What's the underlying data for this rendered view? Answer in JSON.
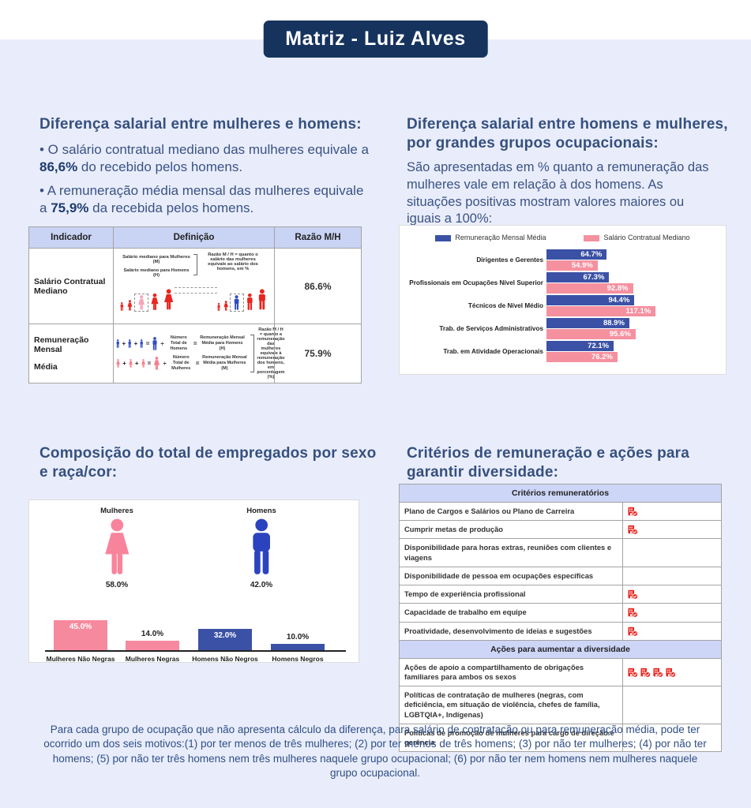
{
  "page": {
    "title": "Matriz - Luiz Alves",
    "footnote": "Para cada grupo de ocupação que não apresenta cálculo da diferença, para salário de contratação ou para remuneração média, pode ter ocorrido um dos seis motivos:(1) por ter menos de três mulheres; (2) por ter menos de três homens; (3) por não ter mulheres; (4) por não ter homens; (5) por não ter três homens nem três mulheres naquele grupo ocupacional; (6) por não ter nem homens nem mulheres naquele grupo ocupacional."
  },
  "salary_gap_section": {
    "heading": "Diferença salarial entre mulheres e homens:",
    "bullet1": {
      "pre": "• O salário contratual mediano das mulheres equivale a ",
      "bold": "86,6%",
      "post": " do recebido pelos homens."
    },
    "bullet2": {
      "pre": "• A remuneração média mensal das mulheres equivale a ",
      "bold": "75,9%",
      "post": " da recebida pelos homens."
    }
  },
  "occupation_section": {
    "heading": "Diferença salarial entre homens e mulheres, por grandes grupos ocupacionais:",
    "description": "São apresentadas em % quanto a remuneração das mulheres vale em relação à dos homens. As situações positivas mostram valores maiores ou iguais a 100%:"
  },
  "composition_section": {
    "heading": "Composição do total de empregados por sexo e raça/cor:"
  },
  "criteria_section": {
    "heading": "Critérios de remuneração e ações para garantir diversidade:"
  },
  "indicator_table": {
    "headers": [
      "Indicador",
      "Definição",
      "Razão M/H"
    ],
    "row1": {
      "indicator": "Salário Contratual Mediano",
      "def_line1": "Salário mediano para Mulheres (M)",
      "def_line2": "Salário mediano para Homens (H)",
      "def_note": "Razão M / H = quanto o salário das mulheres equivale ao salário dos homens, em %",
      "ratio": "86.6%"
    },
    "row2": {
      "indicator_line1": "Remuneração Mensal",
      "indicator_line2": "Média",
      "men_divisor": "Número Total de Homens",
      "men_result": "Remuneração Mensal Média para Homens (H)",
      "women_divisor": "Número Total de Mulheres",
      "women_result": "Remuneração Mensal Média para Mulheres (M)",
      "def_note": "Razão M / H = quanto a remuneração das mulheres equivale à remuneração dos homens, em porcentagem (%)",
      "ratio": "75.9%"
    }
  },
  "operators": {
    "plus": "+",
    "equals": "=",
    "divide": "÷"
  },
  "chart_data": [
    {
      "type": "bar",
      "orientation": "horizontal",
      "title": "",
      "categories": [
        "Dirigentes e Gerentes",
        "Profissionais em Ocupações Nível Superior",
        "Técnicos de Nível Médio",
        "Trab. de Serviços Administrativos",
        "Trab. em Atividade Operacionais"
      ],
      "series": [
        {
          "name": "Remuneração Mensal Média",
          "color": "#3B51A5",
          "values": [
            64.7,
            67.3,
            94.4,
            88.9,
            72.1
          ]
        },
        {
          "name": "Salário Contratual Mediano",
          "color": "#F5909F",
          "values": [
            54.9,
            92.8,
            117.1,
            95.6,
            76.2
          ]
        }
      ],
      "value_suffix": "%",
      "legend_position": "top",
      "grid": false
    },
    {
      "type": "bar",
      "orientation": "vertical",
      "title": "",
      "pictograms": [
        {
          "label": "Mulheres",
          "value": "58.0%",
          "icon": "woman-icon",
          "color": "#F8849B"
        },
        {
          "label": "Homens",
          "value": "42.0%",
          "icon": "man-icon",
          "color": "#2B43BF"
        }
      ],
      "categories": [
        "Mulheres Não Negras",
        "Mulheres Negras",
        "Homens Não Negros",
        "Homens Negros"
      ],
      "values": [
        45.0,
        14.0,
        32.0,
        10.0
      ],
      "colors": [
        "#F7899E",
        "#F7899E",
        "#3B51A5",
        "#3B51A5"
      ],
      "value_suffix": "%",
      "grid": false
    }
  ],
  "criteria_table": {
    "icon": {
      "name": "building-check-icon",
      "color": "#E8251F"
    },
    "section1": "Critérios remuneratórios",
    "rows1": [
      {
        "label": "Plano de Cargos e Salários ou Plano de Carreira",
        "icons": 1
      },
      {
        "label": "Cumprir metas de produção",
        "icons": 1
      },
      {
        "label": "Disponibilidade para horas extras, reuniões com clientes e viagens",
        "icons": 0
      },
      {
        "label": "Disponibilidade de pessoa em ocupações específicas",
        "icons": 0
      },
      {
        "label": "Tempo de experiência profissional",
        "icons": 1
      },
      {
        "label": "Capacidade de trabalho em equipe",
        "icons": 1
      },
      {
        "label": "Proatividade, desenvolvimento de ideias e sugestões",
        "icons": 1
      }
    ],
    "section2": "Ações para aumentar a diversidade",
    "rows2": [
      {
        "label": "Ações de apoio a compartilhamento de obrigações familiares para ambos os sexos",
        "icons": 4
      },
      {
        "label": "Políticas de contratação de mulheres (negras, com deficiência, em situação de violência, chefes de família, LGBTQIA+, Indígenas)",
        "icons": 0
      },
      {
        "label": "Políticas de promoção de mulheres para cargo de direção e gerência",
        "icons": 0
      }
    ]
  }
}
